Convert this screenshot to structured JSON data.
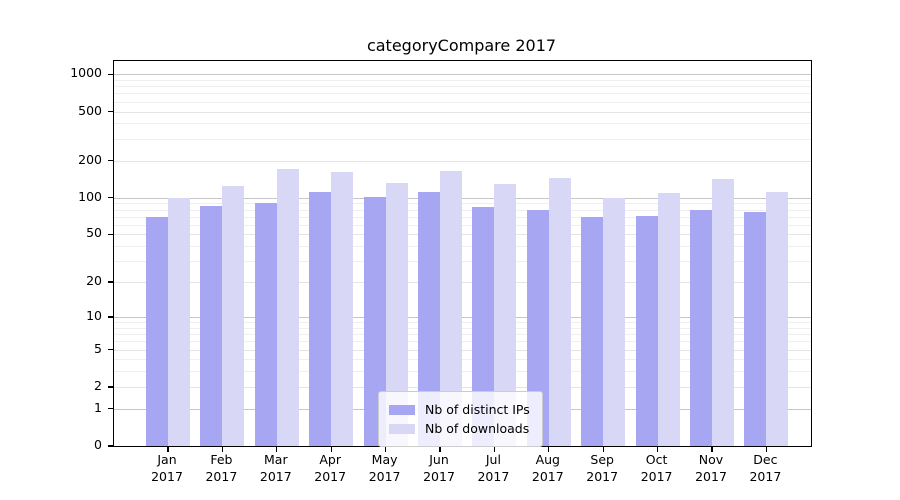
{
  "chart_data": {
    "type": "bar",
    "title": "categoryCompare 2017",
    "categories": [
      "Jan",
      "Feb",
      "Mar",
      "Apr",
      "May",
      "Jun",
      "Jul",
      "Aug",
      "Sep",
      "Oct",
      "Nov",
      "Dec"
    ],
    "x_year_label": "2017",
    "series": [
      {
        "name": "Nb of distinct IPs",
        "color": "#a6a6f2",
        "values": [
          69,
          86,
          90,
          111,
          101,
          112,
          84,
          79,
          69,
          71,
          80,
          77
        ]
      },
      {
        "name": "Nb of downloads",
        "color": "#d8d8f6",
        "values": [
          100,
          125,
          170,
          163,
          131,
          165,
          130,
          144,
          100,
          109,
          142,
          112
        ]
      }
    ],
    "yscale": "log1p",
    "ylim": [
      0,
      1280
    ],
    "y_ticks": [
      0,
      1,
      2,
      5,
      10,
      20,
      50,
      100,
      200,
      500,
      1000
    ],
    "grid": {
      "major": [
        1,
        10,
        100,
        1000
      ],
      "minor_labeled": [
        2,
        5,
        20,
        50,
        200,
        500
      ],
      "minor": [
        3,
        4,
        6,
        7,
        8,
        9,
        30,
        40,
        60,
        70,
        80,
        90,
        300,
        400,
        600,
        700,
        800,
        900
      ]
    },
    "legend_position": "inside-bottom-center",
    "colors": {
      "axis": "#000000",
      "major_grid": "#c6c6c6",
      "minor_grid": "#efefef"
    }
  }
}
